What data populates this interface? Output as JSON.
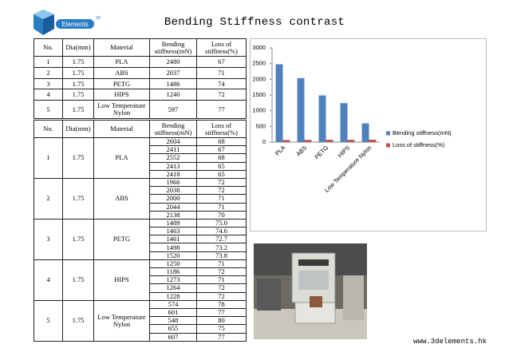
{
  "logo": {
    "name": "Elements",
    "mark": "3D"
  },
  "title": "Bending Stiffness contrast",
  "summary_table": {
    "header": [
      "No.",
      "Dia(mm)",
      "Material",
      "Bending stiffness(mN)",
      "Loss of stiffness(%)"
    ],
    "rows": [
      [
        "1",
        "1.75",
        "PLA",
        "2480",
        "67"
      ],
      [
        "2",
        "1.75",
        "ABS",
        "2037",
        "71"
      ],
      [
        "3",
        "1.75",
        "PETG",
        "1486",
        "74"
      ],
      [
        "4",
        "1.75",
        "HIPS",
        "1240",
        "72"
      ],
      [
        "5",
        "1.75",
        "Low Temperature Nylon",
        "597",
        "77"
      ]
    ]
  },
  "detail_table": {
    "header": [
      "No.",
      "Dia(mm)",
      "Material",
      "Bending stiffness(mN)",
      "Loss of stiffness(%)"
    ],
    "groups": [
      {
        "no": "1",
        "dia": "1.75",
        "material": "PLA",
        "measurements": [
          [
            "2604",
            "68"
          ],
          [
            "2411",
            "67"
          ],
          [
            "2552",
            "68"
          ],
          [
            "2413",
            "65"
          ],
          [
            "2418",
            "65"
          ]
        ]
      },
      {
        "no": "2",
        "dia": "1.75",
        "material": "ABS",
        "measurements": [
          [
            "1966",
            "72"
          ],
          [
            "2038",
            "72"
          ],
          [
            "2000",
            "71"
          ],
          [
            "2044",
            "71"
          ],
          [
            "2138",
            "70"
          ]
        ]
      },
      {
        "no": "3",
        "dia": "1.75",
        "material": "PETG",
        "measurements": [
          [
            "1489",
            "75.0"
          ],
          [
            "1463",
            "74.6"
          ],
          [
            "1461",
            "72.7"
          ],
          [
            "1498",
            "73.2"
          ],
          [
            "1520",
            "73.8"
          ]
        ]
      },
      {
        "no": "4",
        "dia": "1.75",
        "material": "HIPS",
        "measurements": [
          [
            "1250",
            "71"
          ],
          [
            "1186",
            "72"
          ],
          [
            "1273",
            "71"
          ],
          [
            "1264",
            "72"
          ],
          [
            "1228",
            "72"
          ]
        ]
      },
      {
        "no": "5",
        "dia": "1.75",
        "material": "Low Temperature Nylon",
        "measurements": [
          [
            "574",
            "78"
          ],
          [
            "601",
            "77"
          ],
          [
            "548",
            "80"
          ],
          [
            "655",
            "75"
          ],
          [
            "607",
            "77"
          ]
        ]
      }
    ]
  },
  "chart_data": {
    "type": "bar",
    "categories": [
      "PLA",
      "ABS",
      "PETG",
      "HIPS",
      "Low Temperature Nylon"
    ],
    "series": [
      {
        "name": "Bending stiffness(mN)",
        "color": "#4f81bd",
        "values": [
          2480,
          2037,
          1486,
          1240,
          597
        ]
      },
      {
        "name": "Loss of stiffness(%)",
        "color": "#c0504d",
        "values": [
          67,
          71,
          74,
          72,
          77
        ]
      }
    ],
    "ylim": [
      0,
      3000
    ],
    "yticks": [
      0,
      500,
      1000,
      1500,
      2000,
      2500,
      3000
    ],
    "grid": false,
    "legend": "right"
  },
  "footer": "www.3delements.hk"
}
